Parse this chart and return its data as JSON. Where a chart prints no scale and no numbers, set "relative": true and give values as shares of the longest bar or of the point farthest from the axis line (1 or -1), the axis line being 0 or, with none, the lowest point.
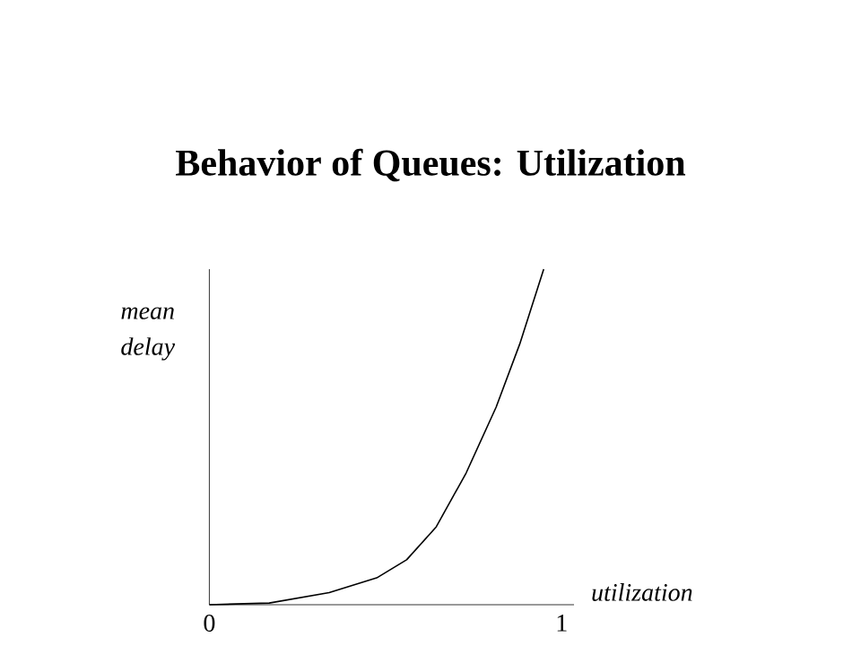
{
  "chart_data": {
    "type": "line",
    "title": "Behavior of Queues: Utilization",
    "xlabel": "utilization",
    "ylabel": "mean delay",
    "relative": true,
    "x": [
      0,
      0.17,
      0.34,
      0.475,
      0.56,
      0.644,
      0.729,
      0.814,
      0.881,
      0.949
    ],
    "values": [
      0,
      0.005,
      0.036,
      0.08,
      0.134,
      0.232,
      0.393,
      0.589,
      0.777,
      1
    ],
    "color": "#000000",
    "xlim": [
      0,
      1.035
    ],
    "xticks": [
      0,
      1
    ]
  }
}
